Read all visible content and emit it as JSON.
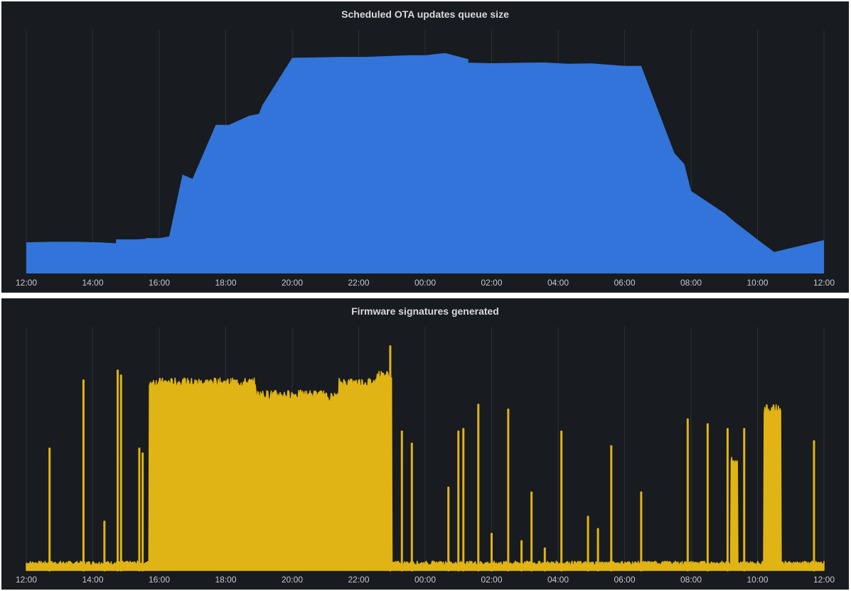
{
  "colors": {
    "background": "#181b1f",
    "grid": "#2c3035",
    "series_blue": "#3274d9",
    "series_yellow": "#e0b414"
  },
  "chart_data": [
    {
      "type": "area",
      "title": "Scheduled OTA updates queue size",
      "x_tick_labels": [
        "12:00",
        "14:00",
        "16:00",
        "18:00",
        "20:00",
        "22:00",
        "00:00",
        "02:00",
        "04:00",
        "06:00",
        "08:00",
        "10:00",
        "12:00"
      ],
      "x_unit": "hours since 12:00",
      "xlim": [
        0,
        24
      ],
      "ylim": [
        0,
        100
      ],
      "grid": "vertical",
      "x": [
        0,
        0.8,
        1.5,
        2.2,
        2.7,
        2.7,
        3.3,
        3.6,
        3.6,
        4.0,
        4.3,
        4.7,
        5.0,
        5.7,
        5.7,
        6.1,
        6.7,
        6.7,
        7.0,
        7.0,
        7.1,
        8.0,
        9.5,
        10.2,
        11.5,
        12.0,
        12.6,
        13.3,
        13.3,
        14.0,
        15.0,
        15.6,
        16.3,
        17.0,
        18.0,
        18.5,
        19.5,
        19.8,
        20.0,
        21.0,
        21.3,
        22.0,
        22.5,
        22.5,
        24.0
      ],
      "y": [
        12.8,
        13.0,
        13.0,
        12.8,
        12.4,
        14.0,
        14.0,
        14.2,
        14.5,
        14.5,
        15.2,
        40.6,
        38.8,
        61.0,
        61.0,
        61.0,
        64.7,
        64.7,
        65.5,
        65.5,
        69.0,
        88.5,
        88.9,
        88.9,
        89.6,
        89.6,
        90.5,
        88.0,
        86.5,
        86.3,
        86.5,
        86.6,
        86.1,
        86.2,
        85.2,
        85.2,
        49.4,
        44.8,
        33.9,
        24.8,
        21.3,
        13.9,
        8.8,
        8.8,
        13.7
      ]
    },
    {
      "type": "area",
      "title": "Firmware signatures generated",
      "x_tick_labels": [
        "12:00",
        "14:00",
        "16:00",
        "18:00",
        "20:00",
        "22:00",
        "00:00",
        "02:00",
        "04:00",
        "06:00",
        "08:00",
        "10:00",
        "12:00"
      ],
      "x_unit": "hours since 12:00",
      "xlim": [
        0,
        24
      ],
      "ylim": [
        0,
        100
      ],
      "grid": "vertical",
      "baseline": 2,
      "plateaus": [
        {
          "x_start": 3.7,
          "x_end": 6.9,
          "level": 77
        },
        {
          "x_start": 6.9,
          "x_end": 9.0,
          "level": 72
        },
        {
          "x_start": 9.0,
          "x_end": 9.4,
          "level": 71
        },
        {
          "x_start": 9.4,
          "x_end": 10.5,
          "level": 77
        },
        {
          "x_start": 10.5,
          "x_end": 11.0,
          "level": 80
        },
        {
          "x_start": 22.2,
          "x_end": 22.7,
          "level": 66
        },
        {
          "x_start": 21.2,
          "x_end": 21.4,
          "level": 45
        }
      ],
      "spikes": [
        {
          "x": 0.7,
          "y": 50
        },
        {
          "x": 1.72,
          "y": 78
        },
        {
          "x": 2.35,
          "y": 20
        },
        {
          "x": 2.75,
          "y": 82
        },
        {
          "x": 2.85,
          "y": 80
        },
        {
          "x": 3.4,
          "y": 50
        },
        {
          "x": 3.5,
          "y": 48
        },
        {
          "x": 10.95,
          "y": 92
        },
        {
          "x": 11.3,
          "y": 57
        },
        {
          "x": 11.6,
          "y": 52
        },
        {
          "x": 12.7,
          "y": 34
        },
        {
          "x": 13.0,
          "y": 57
        },
        {
          "x": 13.15,
          "y": 58
        },
        {
          "x": 13.6,
          "y": 68
        },
        {
          "x": 14.0,
          "y": 15
        },
        {
          "x": 14.5,
          "y": 66
        },
        {
          "x": 14.9,
          "y": 12
        },
        {
          "x": 15.2,
          "y": 32
        },
        {
          "x": 15.6,
          "y": 9
        },
        {
          "x": 16.1,
          "y": 57
        },
        {
          "x": 16.9,
          "y": 22
        },
        {
          "x": 17.2,
          "y": 17
        },
        {
          "x": 17.6,
          "y": 51
        },
        {
          "x": 18.5,
          "y": 32
        },
        {
          "x": 19.9,
          "y": 62
        },
        {
          "x": 20.5,
          "y": 60
        },
        {
          "x": 21.1,
          "y": 58
        },
        {
          "x": 21.6,
          "y": 58
        },
        {
          "x": 23.7,
          "y": 53
        }
      ]
    }
  ]
}
